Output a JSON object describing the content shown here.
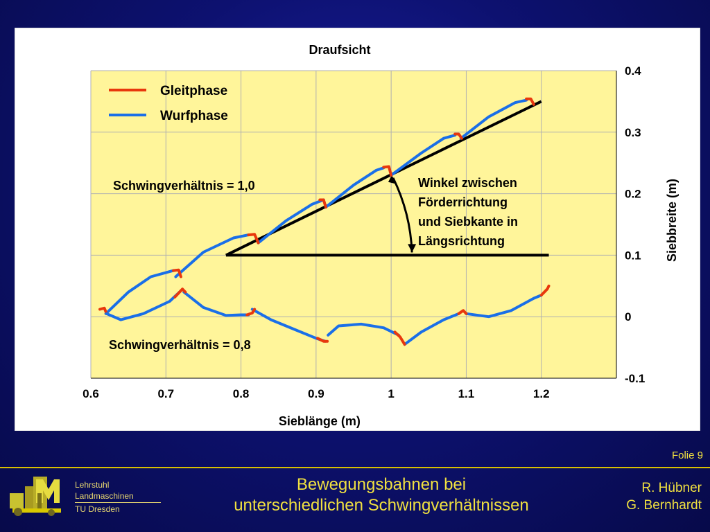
{
  "slide": {
    "title_line1": "Bewegungsbahnen bei",
    "title_line2": "unterschiedlichen Schwingverhältnissen",
    "author1": "R. Hübner",
    "author2": "G. Bernhardt",
    "folio": "Folie 9",
    "chair_line1": "Lehrstuhl",
    "chair_line2": "Landmaschinen",
    "chair_line3": "TU Dresden"
  },
  "colors": {
    "gleit": "#e8380c",
    "wurf": "#1a6fe8",
    "plot_bg": "#fff59a",
    "accent_text": "#f0e040"
  },
  "chart_data": {
    "type": "line",
    "title": "Draufsicht",
    "xlabel": "Sieblänge (m)",
    "ylabel": "Siebbreite (m)",
    "xlim": [
      0.6,
      1.3
    ],
    "ylim": [
      -0.1,
      0.4
    ],
    "xticks": [
      "0.6",
      "0.7",
      "0.8",
      "0.9",
      "1",
      "1.1",
      "1.2"
    ],
    "yticks": [
      "-0.1",
      "0",
      "0.1",
      "0.2",
      "0.3",
      "0.4"
    ],
    "grid": true,
    "legend_position": "top-left",
    "legend": [
      {
        "label": "Gleitphase",
        "color": "#e8380c"
      },
      {
        "label": "Wurfphase",
        "color": "#1a6fe8"
      }
    ],
    "annotations": {
      "ratio_upper": "Schwingverhältnis = 1,0",
      "ratio_lower": "Schwingverhältnis = 0,8",
      "angle_line1": "Winkel zwischen",
      "angle_line2": "Förderrichtung",
      "angle_line3": "und Siebkante in",
      "angle_line4": "Längsrichtung"
    },
    "reference_lines": {
      "horizontal": [
        [
          0.78,
          0.1
        ],
        [
          1.21,
          0.1
        ]
      ],
      "conveying": [
        [
          0.78,
          0.1
        ],
        [
          1.2,
          0.35
        ]
      ]
    },
    "series": [
      {
        "name": "Schwingverhältnis = 1,0",
        "wurf": [
          [
            [
              0.62,
              0.005
            ],
            [
              0.65,
              0.04
            ],
            [
              0.68,
              0.065
            ],
            [
              0.71,
              0.075
            ]
          ],
          [
            [
              0.713,
              0.065
            ],
            [
              0.75,
              0.105
            ],
            [
              0.79,
              0.128
            ],
            [
              0.81,
              0.133
            ]
          ],
          [
            [
              0.823,
              0.12
            ],
            [
              0.86,
              0.156
            ],
            [
              0.895,
              0.183
            ],
            [
              0.91,
              0.19
            ]
          ],
          [
            [
              0.913,
              0.178
            ],
            [
              0.95,
              0.214
            ],
            [
              0.98,
              0.238
            ],
            [
              0.99,
              0.242
            ]
          ],
          [
            [
              1.0,
              0.23
            ],
            [
              1.04,
              0.266
            ],
            [
              1.07,
              0.29
            ],
            [
              1.085,
              0.295
            ]
          ],
          [
            [
              1.093,
              0.29
            ],
            [
              1.13,
              0.325
            ],
            [
              1.165,
              0.348
            ],
            [
              1.18,
              0.352
            ]
          ]
        ],
        "gleit": [
          [
            [
              0.612,
              0.012
            ],
            [
              0.618,
              0.014
            ],
            [
              0.621,
              0.005
            ]
          ],
          [
            [
              0.71,
              0.075
            ],
            [
              0.717,
              0.076
            ],
            [
              0.72,
              0.065
            ]
          ],
          [
            [
              0.81,
              0.133
            ],
            [
              0.818,
              0.134
            ],
            [
              0.823,
              0.12
            ]
          ],
          [
            [
              0.905,
              0.19
            ],
            [
              0.91,
              0.19
            ],
            [
              0.913,
              0.178
            ]
          ],
          [
            [
              0.99,
              0.243
            ],
            [
              0.997,
              0.244
            ],
            [
              1.0,
              0.23
            ]
          ],
          [
            [
              1.085,
              0.297
            ],
            [
              1.09,
              0.297
            ],
            [
              1.094,
              0.29
            ]
          ],
          [
            [
              1.18,
              0.354
            ],
            [
              1.186,
              0.354
            ],
            [
              1.19,
              0.345
            ]
          ]
        ]
      },
      {
        "name": "Schwingverhältnis = 0,8",
        "wurf": [
          [
            [
              0.621,
              0.005
            ],
            [
              0.64,
              -0.005
            ],
            [
              0.67,
              0.005
            ],
            [
              0.705,
              0.025
            ],
            [
              0.718,
              0.04
            ]
          ],
          [
            [
              0.724,
              0.04
            ],
            [
              0.75,
              0.015
            ],
            [
              0.78,
              0.002
            ],
            [
              0.8,
              0.003
            ],
            [
              0.81,
              0.003
            ]
          ],
          [
            [
              0.815,
              0.012
            ],
            [
              0.84,
              -0.005
            ],
            [
              0.87,
              -0.02
            ],
            [
              0.9,
              -0.035
            ],
            [
              0.912,
              -0.04
            ]
          ],
          [
            [
              0.916,
              -0.03
            ],
            [
              0.93,
              -0.015
            ],
            [
              0.96,
              -0.012
            ],
            [
              0.99,
              -0.018
            ],
            [
              1.01,
              -0.03
            ]
          ],
          [
            [
              1.018,
              -0.045
            ],
            [
              1.04,
              -0.025
            ],
            [
              1.07,
              -0.005
            ],
            [
              1.09,
              0.005
            ]
          ],
          [
            [
              1.1,
              0.005
            ],
            [
              1.13,
              0.0
            ],
            [
              1.16,
              0.01
            ],
            [
              1.19,
              0.03
            ],
            [
              1.2,
              0.035
            ]
          ]
        ],
        "gleit": [
          [
            [
              0.712,
              0.032
            ],
            [
              0.722,
              0.045
            ],
            [
              0.726,
              0.04
            ]
          ],
          [
            [
              0.808,
              0.003
            ],
            [
              0.815,
              0.006
            ],
            [
              0.818,
              0.012
            ]
          ],
          [
            [
              0.902,
              -0.035
            ],
            [
              0.91,
              -0.04
            ],
            [
              0.915,
              -0.04
            ]
          ],
          [
            [
              1.005,
              -0.025
            ],
            [
              1.012,
              -0.033
            ],
            [
              1.018,
              -0.045
            ]
          ],
          [
            [
              1.09,
              0.005
            ],
            [
              1.096,
              0.01
            ],
            [
              1.1,
              0.005
            ]
          ],
          [
            [
              1.2,
              0.035
            ],
            [
              1.208,
              0.045
            ],
            [
              1.21,
              0.05
            ]
          ]
        ]
      }
    ]
  }
}
